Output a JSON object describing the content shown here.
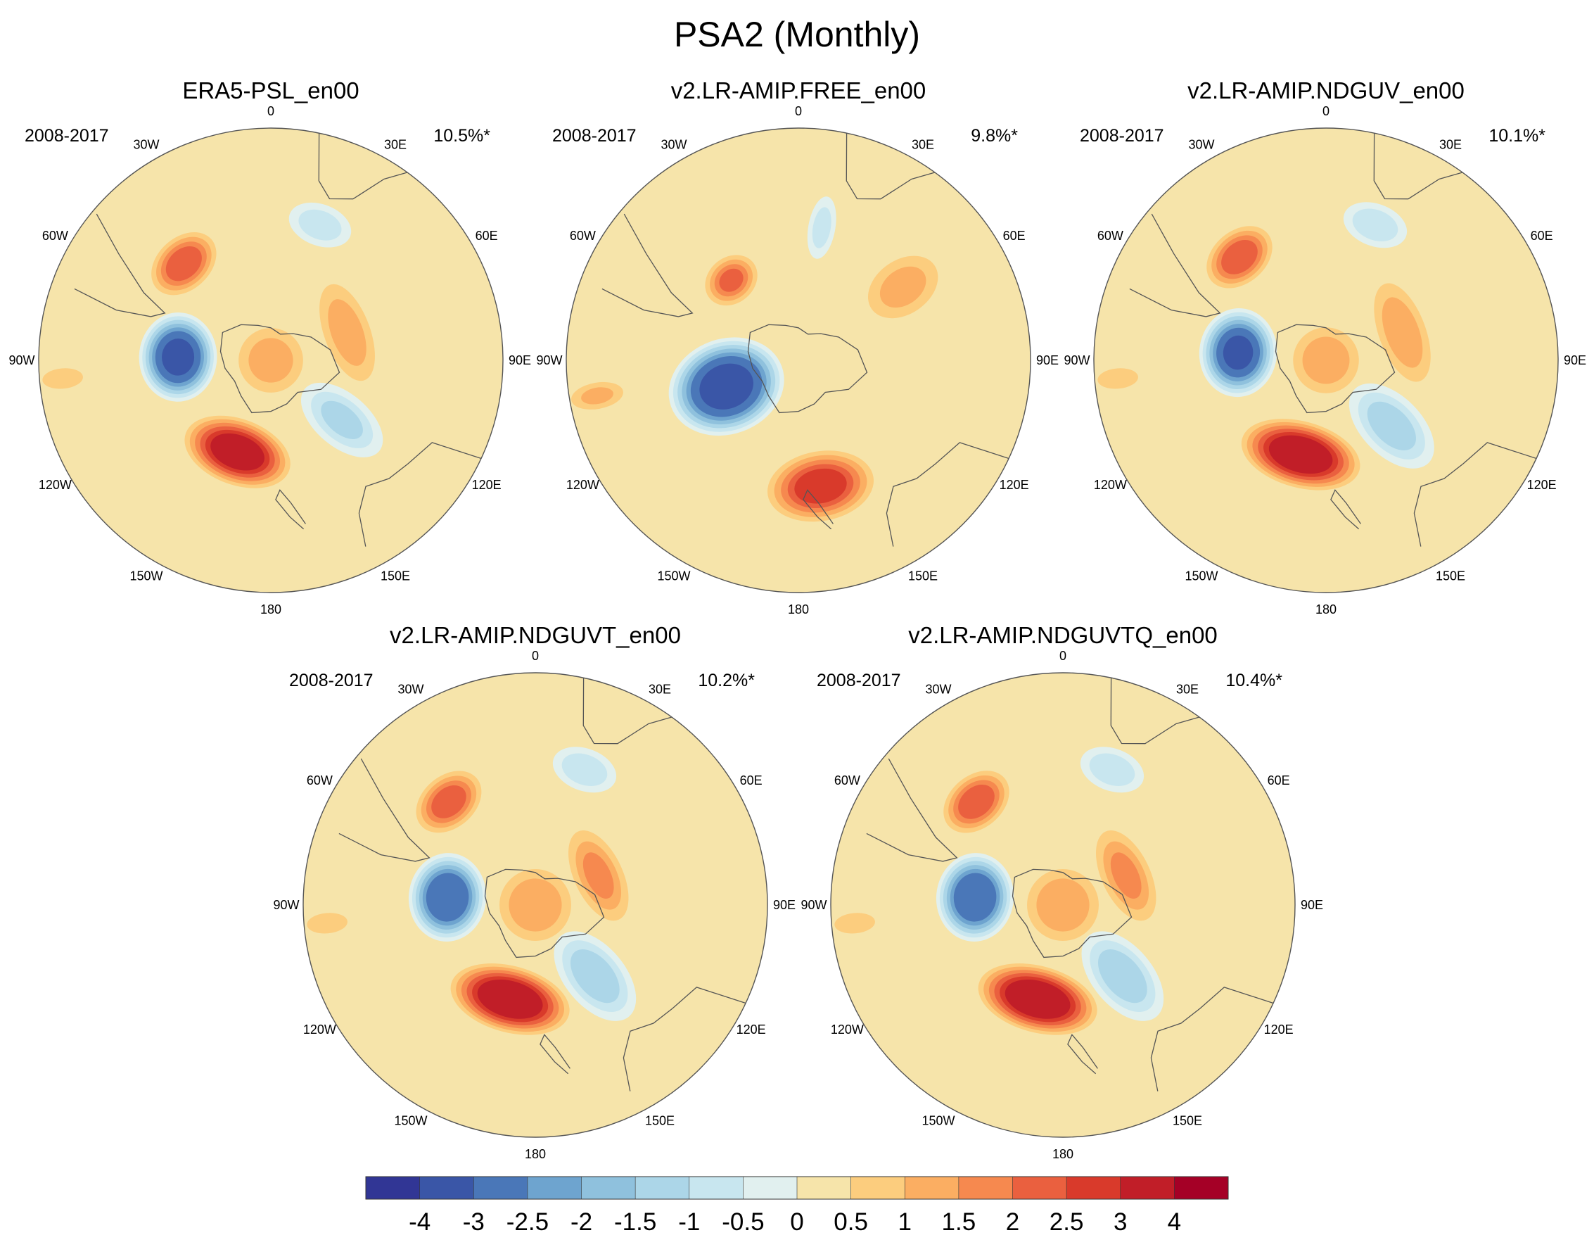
{
  "title": "PSA2 (Monthly)",
  "longitude_labels": [
    "0",
    "30E",
    "60E",
    "90E",
    "120E",
    "150E",
    "180",
    "150W",
    "120W",
    "90W",
    "60W",
    "30W"
  ],
  "panels": [
    {
      "title": "ERA5-PSL_en00",
      "period": "2008-2017",
      "variance": "10.5%*",
      "features": [
        {
          "lon": 20,
          "r": 0.62,
          "rx": 0.14,
          "ry": 0.09,
          "value": -1.2
        },
        {
          "lon": -42,
          "r": 0.56,
          "rx": 0.14,
          "ry": 0.1,
          "value": 2.4
        },
        {
          "lon": -88,
          "r": 0.4,
          "rx": 0.16,
          "ry": 0.14,
          "value": -4.2
        },
        {
          "lon": -160,
          "r": 0.42,
          "rx": 0.2,
          "ry": 0.12,
          "value": 3.6
        },
        {
          "lon": 130,
          "r": 0.4,
          "rx": 0.11,
          "ry": 0.2,
          "value": -1.5
        },
        {
          "lon": 70,
          "r": 0.35,
          "rx": 0.22,
          "ry": 0.1,
          "value": 1.2
        },
        {
          "lon": 0,
          "r": 0.0,
          "rx": 0.14,
          "ry": 0.14,
          "value": 1.2
        },
        {
          "lon": -95,
          "r": 0.9,
          "rx": 0.05,
          "ry": 0.1,
          "value": 0.8
        }
      ]
    },
    {
      "title": "v2.LR-AMIP.FREE_en00",
      "period": "2008-2017",
      "variance": "9.8%*",
      "features": [
        {
          "lon": 10,
          "r": 0.58,
          "rx": 0.06,
          "ry": 0.14,
          "value": -1.1
        },
        {
          "lon": -40,
          "r": 0.45,
          "rx": 0.11,
          "ry": 0.09,
          "value": 2.0
        },
        {
          "lon": -110,
          "r": 0.33,
          "rx": 0.17,
          "ry": 0.21,
          "value": -4.6
        },
        {
          "lon": 170,
          "r": 0.55,
          "rx": 0.2,
          "ry": 0.13,
          "value": 2.8
        },
        {
          "lon": 55,
          "r": 0.55,
          "rx": 0.12,
          "ry": 0.17,
          "value": 1.1
        },
        {
          "lon": -100,
          "r": 0.88,
          "rx": 0.06,
          "ry": 0.12,
          "value": 1.0
        }
      ]
    },
    {
      "title": "v2.LR-AMIP.NDGUV_en00",
      "period": "2008-2017",
      "variance": "10.1%*",
      "features": [
        {
          "lon": 20,
          "r": 0.62,
          "rx": 0.14,
          "ry": 0.09,
          "value": -1.3
        },
        {
          "lon": -40,
          "r": 0.58,
          "rx": 0.14,
          "ry": 0.1,
          "value": 2.4
        },
        {
          "lon": -85,
          "r": 0.38,
          "rx": 0.16,
          "ry": 0.14,
          "value": -4.0
        },
        {
          "lon": -165,
          "r": 0.42,
          "rx": 0.22,
          "ry": 0.12,
          "value": 3.8
        },
        {
          "lon": 135,
          "r": 0.4,
          "rx": 0.12,
          "ry": 0.21,
          "value": -1.7
        },
        {
          "lon": 70,
          "r": 0.35,
          "rx": 0.22,
          "ry": 0.1,
          "value": 1.3
        },
        {
          "lon": 0,
          "r": 0.0,
          "rx": 0.14,
          "ry": 0.14,
          "value": 1.3
        },
        {
          "lon": -95,
          "r": 0.9,
          "rx": 0.05,
          "ry": 0.1,
          "value": 0.8
        }
      ]
    },
    {
      "title": "v2.LR-AMIP.NDGUVT_en00",
      "period": "2008-2017",
      "variance": "10.2%*",
      "features": [
        {
          "lon": 20,
          "r": 0.62,
          "rx": 0.14,
          "ry": 0.09,
          "value": -1.3
        },
        {
          "lon": -40,
          "r": 0.58,
          "rx": 0.14,
          "ry": 0.1,
          "value": 2.3
        },
        {
          "lon": -85,
          "r": 0.38,
          "rx": 0.16,
          "ry": 0.14,
          "value": -3.9
        },
        {
          "lon": -165,
          "r": 0.42,
          "rx": 0.22,
          "ry": 0.12,
          "value": 3.9
        },
        {
          "lon": 140,
          "r": 0.4,
          "rx": 0.12,
          "ry": 0.21,
          "value": -1.8
        },
        {
          "lon": 65,
          "r": 0.3,
          "rx": 0.2,
          "ry": 0.1,
          "value": 1.5
        },
        {
          "lon": 0,
          "r": 0.0,
          "rx": 0.15,
          "ry": 0.15,
          "value": 1.4
        },
        {
          "lon": -95,
          "r": 0.9,
          "rx": 0.05,
          "ry": 0.1,
          "value": 0.8
        }
      ]
    },
    {
      "title": "v2.LR-AMIP.NDGUVTQ_en00",
      "period": "2008-2017",
      "variance": "10.4%*",
      "features": [
        {
          "lon": 20,
          "r": 0.62,
          "rx": 0.14,
          "ry": 0.09,
          "value": -1.3
        },
        {
          "lon": -40,
          "r": 0.58,
          "rx": 0.14,
          "ry": 0.1,
          "value": 2.4
        },
        {
          "lon": -85,
          "r": 0.38,
          "rx": 0.16,
          "ry": 0.14,
          "value": -3.9
        },
        {
          "lon": -165,
          "r": 0.42,
          "rx": 0.22,
          "ry": 0.12,
          "value": 3.9
        },
        {
          "lon": 140,
          "r": 0.4,
          "rx": 0.12,
          "ry": 0.21,
          "value": -1.8
        },
        {
          "lon": 65,
          "r": 0.3,
          "rx": 0.2,
          "ry": 0.1,
          "value": 1.5
        },
        {
          "lon": 0,
          "r": 0.0,
          "rx": 0.15,
          "ry": 0.15,
          "value": 1.4
        },
        {
          "lon": -95,
          "r": 0.9,
          "rx": 0.05,
          "ry": 0.1,
          "value": 0.8
        }
      ]
    }
  ],
  "colorbar": {
    "levels": [
      -4,
      -3,
      -2.5,
      -2,
      -1.5,
      -1,
      -0.5,
      0,
      0.5,
      1,
      1.5,
      2,
      2.5,
      3,
      4
    ],
    "labels": [
      "-4",
      "-3",
      "-2.5",
      "-2",
      "-1.5",
      "-1",
      "-0.5",
      "0",
      "0.5",
      "1",
      "1.5",
      "2",
      "2.5",
      "3",
      "4"
    ],
    "colors": [
      "#313695",
      "#3a56a7",
      "#4a77b8",
      "#6ea4cf",
      "#8fc1dd",
      "#acd6e8",
      "#c8e6ef",
      "#e1f0ef",
      "#f6e4aa",
      "#fccd7e",
      "#fbae62",
      "#f6894f",
      "#ea603f",
      "#d93a2b",
      "#c11e28",
      "#a50026"
    ]
  },
  "style": {
    "background_field": "#f6e4aa",
    "land_outline": "#555555"
  }
}
